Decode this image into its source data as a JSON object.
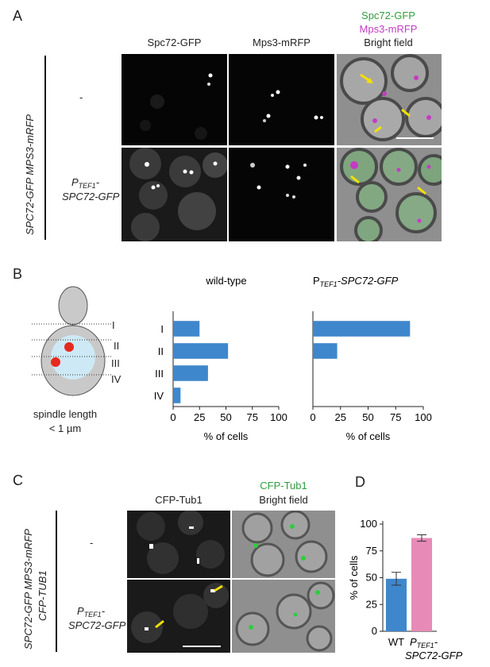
{
  "panel_A": {
    "letter": "A",
    "col_headers": [
      "Spc72-GFP",
      "Mps3-mRFP"
    ],
    "merge_legend": [
      "Spc72-GFP",
      "Mps3-mRFP",
      "Bright field"
    ],
    "genotype": "SPC72-GFP MPS3-mRFP",
    "row1_label": "-",
    "row2_label_main": "P",
    "row2_label_sub": "TEF1",
    "row2_label_rest": "-",
    "row2_label_line2": "SPC72-GFP",
    "colors": {
      "gfp": "#2e9e3e",
      "rfp": "#c23cc2",
      "arrow": "#f2e100"
    }
  },
  "panel_B": {
    "letter": "B",
    "diagram_levels": [
      "I",
      "II",
      "III",
      "IV"
    ],
    "diagram_caption_1": "spindle length",
    "diagram_caption_2": "< 1 µm",
    "colors": {
      "cell": "#c9c9c9",
      "nucleus": "#cde9f5",
      "spb": "#e8281f",
      "bar": "#3f87cc"
    }
  },
  "panel_C": {
    "letter": "C",
    "col_header": "CFP-Tub1",
    "merge_legend": [
      "CFP-Tub1",
      "Bright field"
    ],
    "genotype_line1": "SPC72-GFP MPS3-mRFP",
    "genotype_line2": "CFP-TUB1",
    "row1_label": "-",
    "row2_label_main": "P",
    "row2_label_sub": "TEF1",
    "row2_label_rest": "-",
    "row2_label_line2": "SPC72-GFP"
  },
  "panel_D": {
    "letter": "D",
    "colors": {
      "wt": "#3f87cc",
      "ptef": "#e88ab8"
    }
  },
  "chart_data": [
    {
      "type": "bar",
      "orientation": "horizontal",
      "title": "wild-type",
      "categories": [
        "I",
        "II",
        "III",
        "IV"
      ],
      "values": [
        25,
        52,
        33,
        7
      ],
      "xlabel": "% of cells",
      "xlim": [
        0,
        100
      ],
      "xticks": [
        0,
        25,
        50,
        75,
        100
      ]
    },
    {
      "type": "bar",
      "orientation": "horizontal",
      "title_main": "P",
      "title_sub": "TEF1",
      "title_rest": "-SPC72-GFP",
      "categories": [
        "I",
        "II",
        "III",
        "IV"
      ],
      "values": [
        88,
        22,
        0,
        0
      ],
      "xlabel": "% of cells",
      "xlim": [
        0,
        100
      ],
      "xticks": [
        0,
        25,
        50,
        75,
        100
      ]
    },
    {
      "type": "bar",
      "orientation": "vertical",
      "categories": [
        "WT",
        "P TEF1-SPC72-GFP"
      ],
      "category_labels": {
        "wt": "WT",
        "ptef_main": "P",
        "ptef_sub": "TEF1",
        "ptef_rest": "-",
        "ptef_line2": "SPC72-GFP"
      },
      "values": [
        49,
        87
      ],
      "errors": [
        6,
        3
      ],
      "ylabel": "% of cells",
      "ylim": [
        0,
        100
      ],
      "yticks": [
        0,
        25,
        50,
        75,
        100
      ]
    }
  ]
}
